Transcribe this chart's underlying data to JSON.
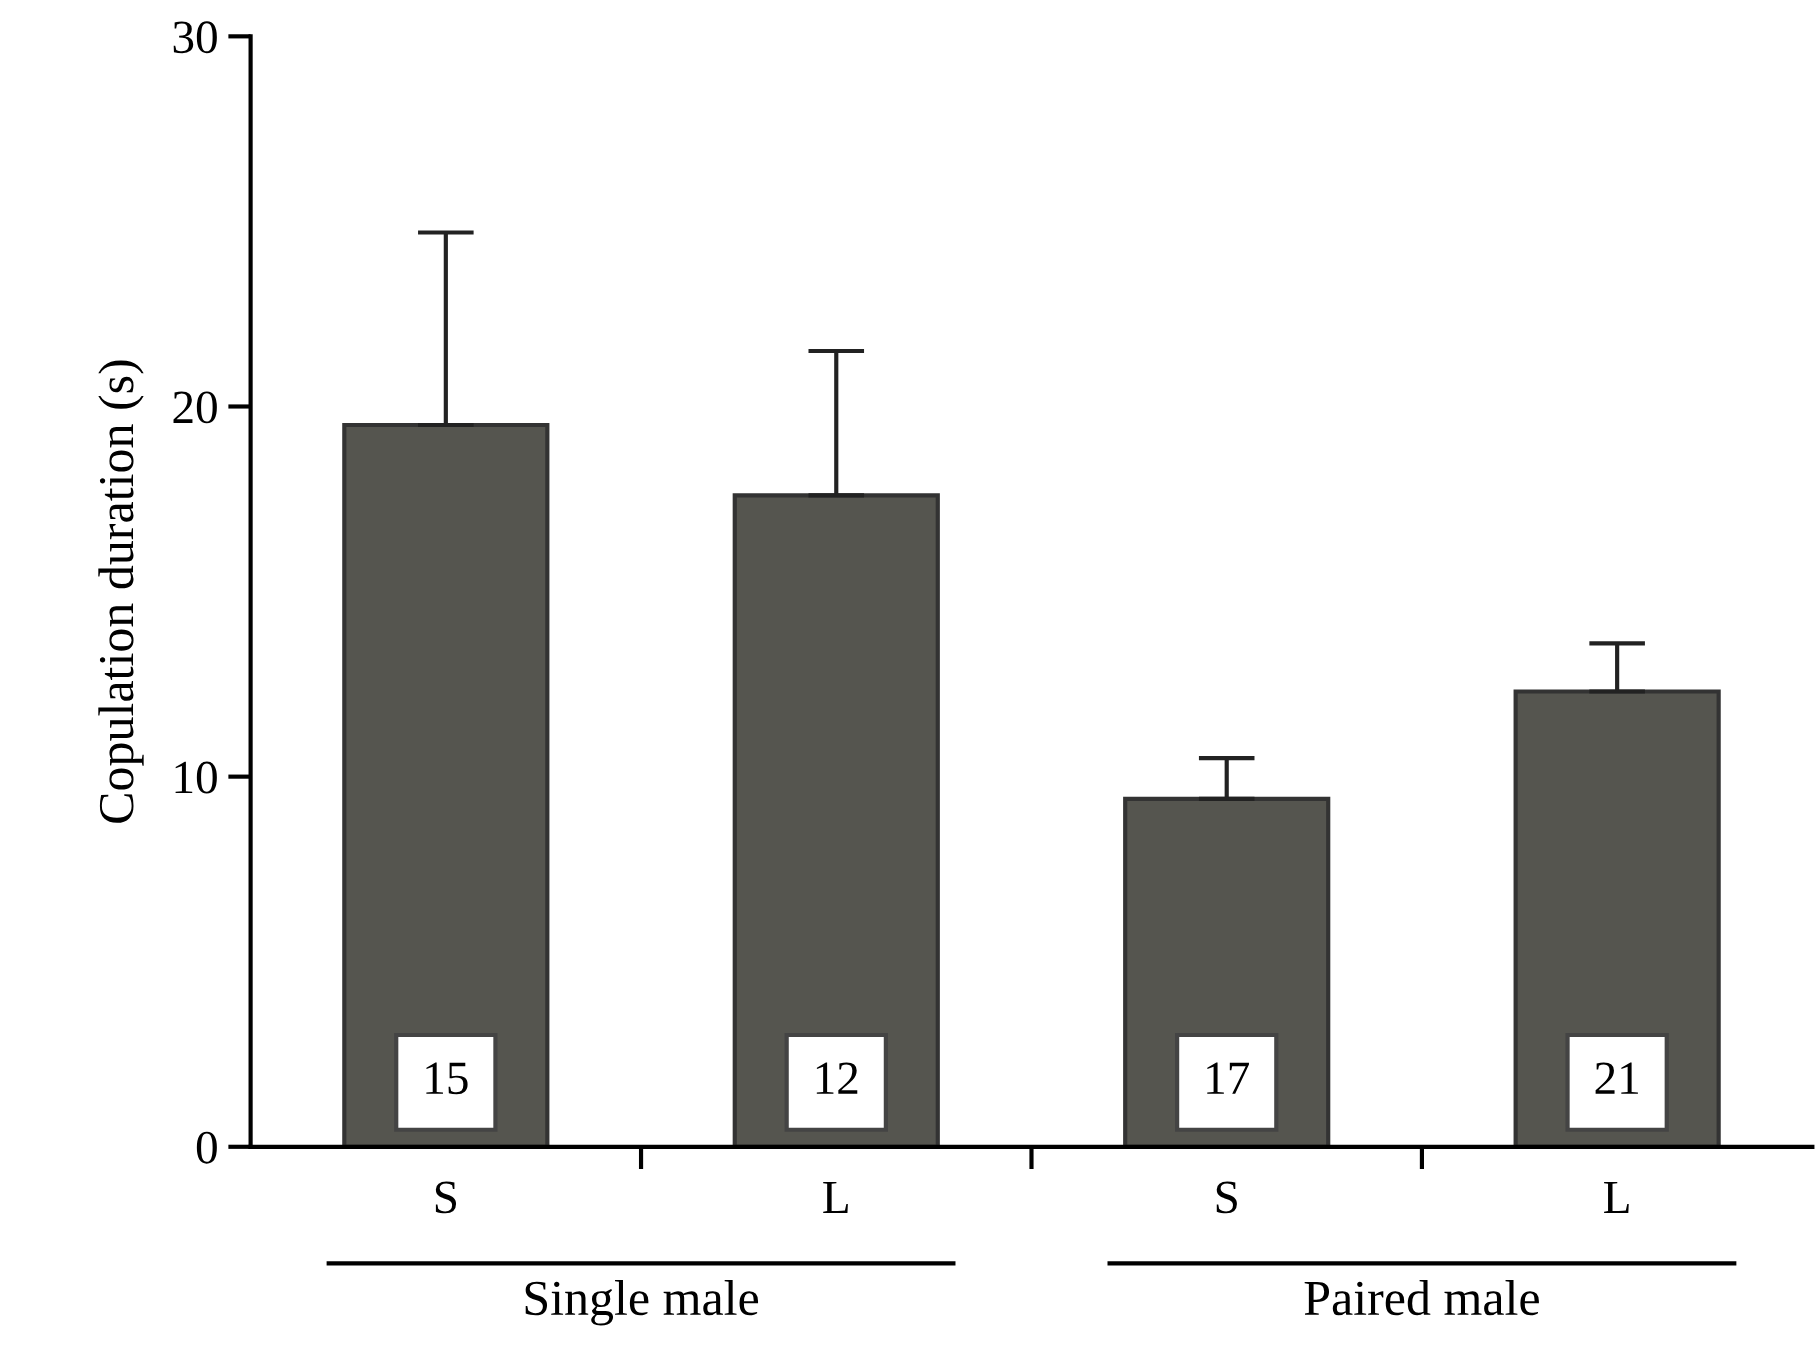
{
  "chart_data": {
    "type": "bar",
    "ylabel": "Copulation duration (s)",
    "categories": [
      "S",
      "L",
      "S",
      "L"
    ],
    "values": [
      19.5,
      17.6,
      9.4,
      12.3
    ],
    "errors": [
      [
        19.5,
        24.7
      ],
      [
        17.6,
        21.5
      ],
      [
        9.4,
        10.5
      ],
      [
        12.3,
        13.6
      ]
    ],
    "color": "#55554f",
    "ylim": [
      0,
      30
    ],
    "yticks": [
      0,
      10,
      20,
      30
    ],
    "grid": false,
    "annotations": [
      "15",
      "12",
      "17",
      "21",
      "Single male",
      "Paired male"
    ]
  }
}
